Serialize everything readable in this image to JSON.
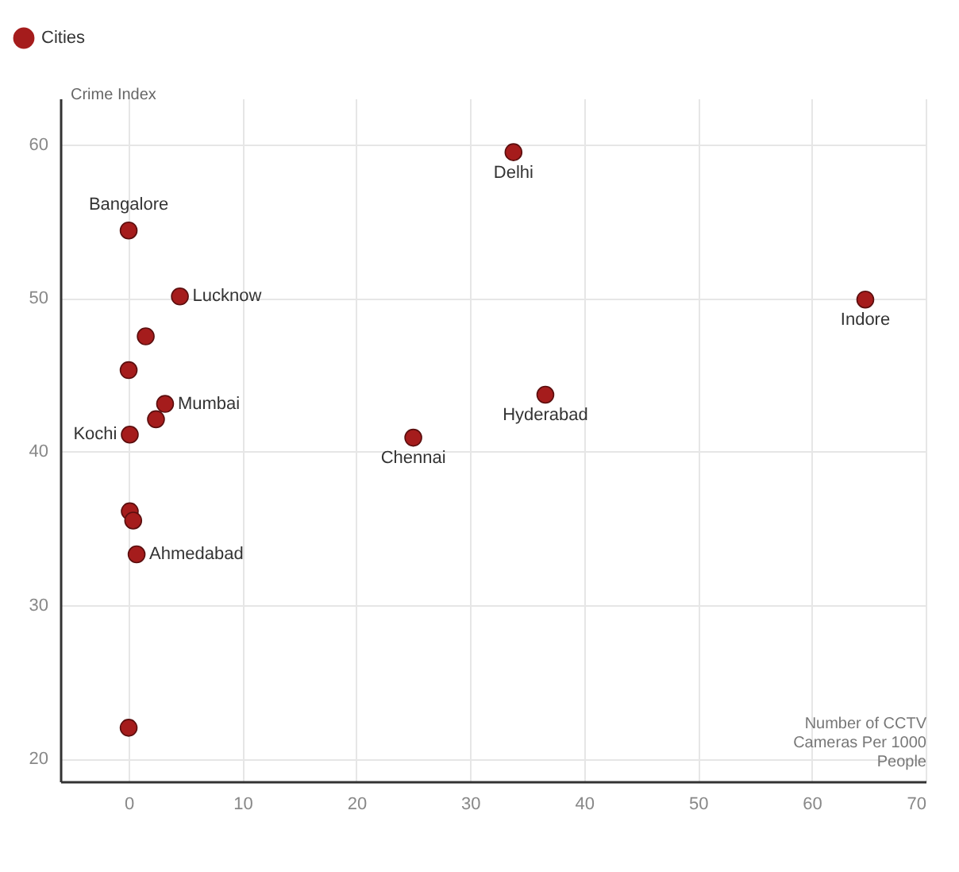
{
  "chart_data": {
    "type": "scatter",
    "xlabel": "Number of CCTV Cameras Per 1000 People",
    "ylabel": "Crime Index",
    "x": [
      33.8,
      0,
      4.5,
      1.5,
      0,
      3.2,
      2.4,
      0.1,
      25,
      36.6,
      64.7,
      0.1,
      0.4,
      0.7,
      0
    ],
    "series": [
      {
        "name": "Cities",
        "color": "#a51c1c",
        "values": [
          59.5,
          54.4,
          50.1,
          47.5,
          45.3,
          43.1,
          42.1,
          41.1,
          40.9,
          43.7,
          49.9,
          36.1,
          35.5,
          33.3,
          22.0
        ]
      }
    ],
    "annotations": [
      {
        "text": "Delhi",
        "x": 33.8,
        "y": 59.5
      },
      {
        "text": "Bangalore",
        "x": 0,
        "y": 54.4
      },
      {
        "text": "Lucknow",
        "x": 4.5,
        "y": 50.1
      },
      {
        "text": "Mumbai",
        "x": 3.2,
        "y": 43.1
      },
      {
        "text": "Kochi",
        "x": 0.1,
        "y": 41.1
      },
      {
        "text": "Chennai",
        "x": 25,
        "y": 40.9
      },
      {
        "text": "Hyderabad",
        "x": 36.6,
        "y": 43.7
      },
      {
        "text": "Indore",
        "x": 64.7,
        "y": 49.9
      },
      {
        "text": "Ahmedabad",
        "x": 0.7,
        "y": 33.3
      }
    ],
    "xlim": [
      -6,
      70
    ],
    "xticks": [
      0,
      10,
      20,
      30,
      40,
      50,
      60,
      70
    ],
    "ylim": [
      18.5,
      63
    ],
    "yticks": [
      20,
      30,
      40,
      50,
      60
    ],
    "grid": true,
    "legend": "top left",
    "marker": "circle"
  }
}
